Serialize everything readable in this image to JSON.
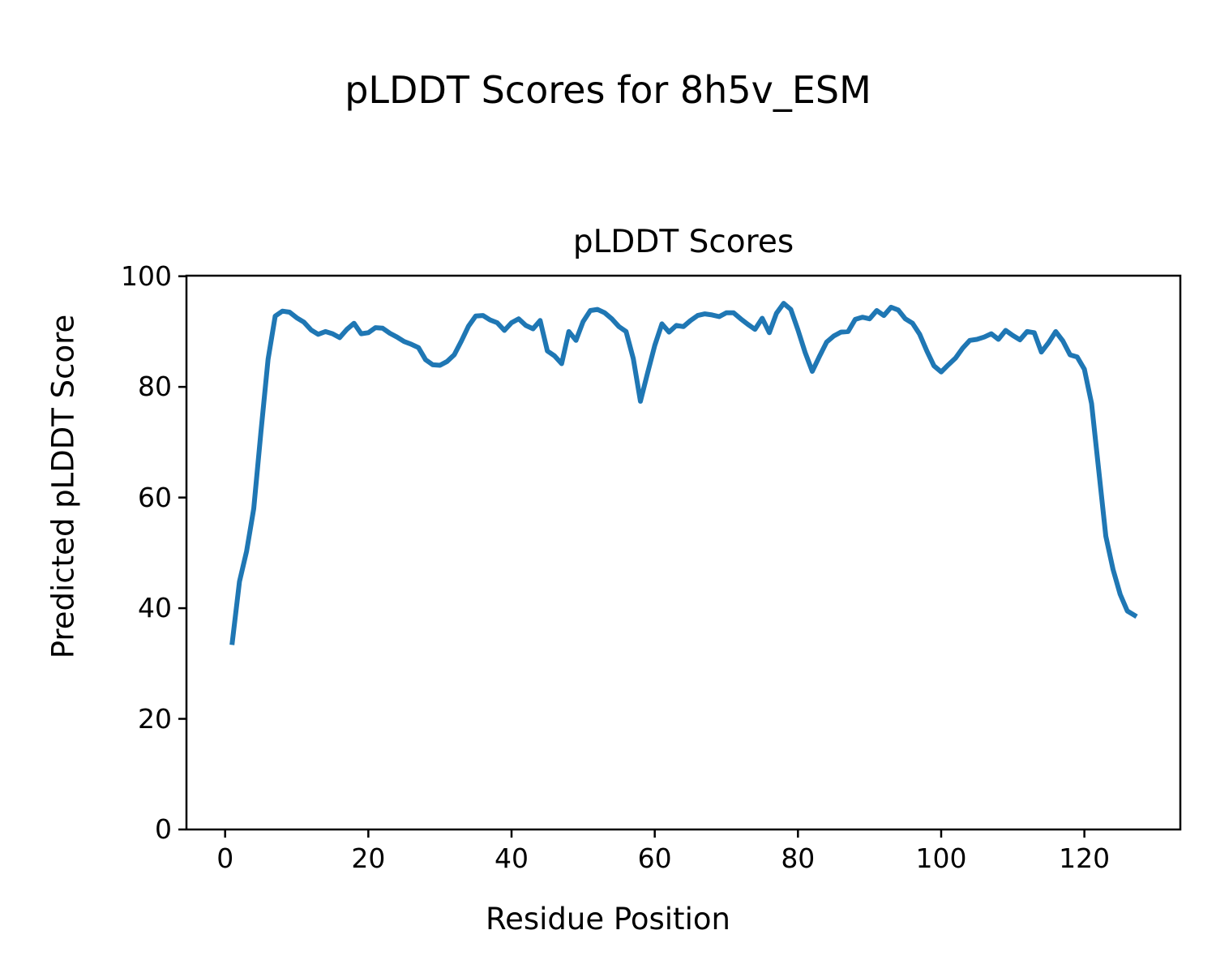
{
  "figure": {
    "suptitle": "pLDDT Scores for 8h5v_ESM",
    "background": "#ffffff"
  },
  "axes": {
    "title": "pLDDT Scores",
    "xlabel": "Residue Position",
    "ylabel": "Predicted pLDDT Score"
  },
  "chart_data": {
    "type": "line",
    "title": "pLDDT Scores",
    "xlabel": "Residue Position",
    "ylabel": "Predicted pLDDT Score",
    "line_color": "#1f77b4",
    "line_width": 6,
    "axis_color": "#000000",
    "grid": false,
    "legend": null,
    "xlim": [
      -5.4,
      133.4
    ],
    "ylim": [
      0,
      100.1
    ],
    "xticks": [
      0,
      20,
      40,
      60,
      80,
      100,
      120
    ],
    "yticks": [
      0,
      20,
      40,
      60,
      80,
      100
    ],
    "x": [
      1,
      2,
      3,
      4,
      5,
      6,
      7,
      8,
      9,
      10,
      11,
      12,
      13,
      14,
      15,
      16,
      17,
      18,
      19,
      20,
      21,
      22,
      23,
      24,
      25,
      26,
      27,
      28,
      29,
      30,
      31,
      32,
      33,
      34,
      35,
      36,
      37,
      38,
      39,
      40,
      41,
      42,
      43,
      44,
      45,
      46,
      47,
      48,
      49,
      50,
      51,
      52,
      53,
      54,
      55,
      56,
      57,
      58,
      59,
      60,
      61,
      62,
      63,
      64,
      65,
      66,
      67,
      68,
      69,
      70,
      71,
      72,
      73,
      74,
      75,
      76,
      77,
      78,
      79,
      80,
      81,
      82,
      83,
      84,
      85,
      86,
      87,
      88,
      89,
      90,
      91,
      92,
      93,
      94,
      95,
      96,
      97,
      98,
      99,
      100,
      101,
      102,
      103,
      104,
      105,
      106,
      107,
      108,
      109,
      110,
      111,
      112,
      113,
      114,
      115,
      116,
      117,
      118,
      119,
      120,
      121,
      122,
      123,
      124,
      125,
      126,
      127
    ],
    "y": [
      33.8,
      44.8,
      50.3,
      58.0,
      71.9,
      85.0,
      92.8,
      93.7,
      93.5,
      92.5,
      91.7,
      90.3,
      89.5,
      90.0,
      89.6,
      88.9,
      90.4,
      91.5,
      89.6,
      89.8,
      90.7,
      90.6,
      89.7,
      89.0,
      88.2,
      87.7,
      87.1,
      84.9,
      84.0,
      83.9,
      84.6,
      85.8,
      88.3,
      91.0,
      92.8,
      92.9,
      92.1,
      91.6,
      90.2,
      91.6,
      92.3,
      91.1,
      90.5,
      92.0,
      86.5,
      85.6,
      84.2,
      90.0,
      88.4,
      91.8,
      93.8,
      94.0,
      93.4,
      92.3,
      90.9,
      90.0,
      85.1,
      77.4,
      82.5,
      87.5,
      91.4,
      89.9,
      91.1,
      90.9,
      92.0,
      92.9,
      93.2,
      93.0,
      92.7,
      93.4,
      93.4,
      92.3,
      91.3,
      90.4,
      92.4,
      89.8,
      93.3,
      95.1,
      94.0,
      90.3,
      86.2,
      82.8,
      85.5,
      88.1,
      89.2,
      89.9,
      90.0,
      92.2,
      92.6,
      92.3,
      93.8,
      92.9,
      94.4,
      93.9,
      92.3,
      91.5,
      89.5,
      86.5,
      83.8,
      82.7,
      84.0,
      85.2,
      87.0,
      88.4,
      88.6,
      89.0,
      89.6,
      88.6,
      90.2,
      89.3,
      88.5,
      90.0,
      89.8,
      86.3,
      88.0,
      90.0,
      88.3,
      85.8,
      85.4,
      83.2,
      77.0,
      65.0,
      53.0,
      47.0,
      42.5,
      39.5,
      38.7
    ]
  }
}
